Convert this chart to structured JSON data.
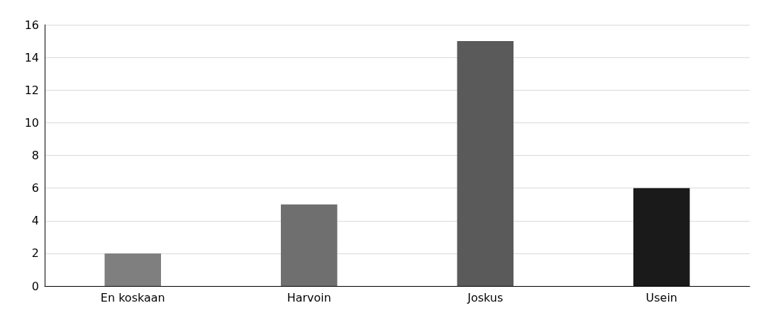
{
  "chart_data": {
    "type": "bar",
    "categories": [
      "En koskaan",
      "Harvoin",
      "Joskus",
      "Usein"
    ],
    "values": [
      2,
      5,
      15,
      6
    ],
    "colors": [
      "#7f7f7f",
      "#6f6f6f",
      "#5a5a5a",
      "#1a1a1a"
    ],
    "ylim": [
      0,
      16
    ],
    "yticks": [
      0,
      2,
      4,
      6,
      8,
      10,
      12,
      14,
      16
    ],
    "grid": "y"
  }
}
